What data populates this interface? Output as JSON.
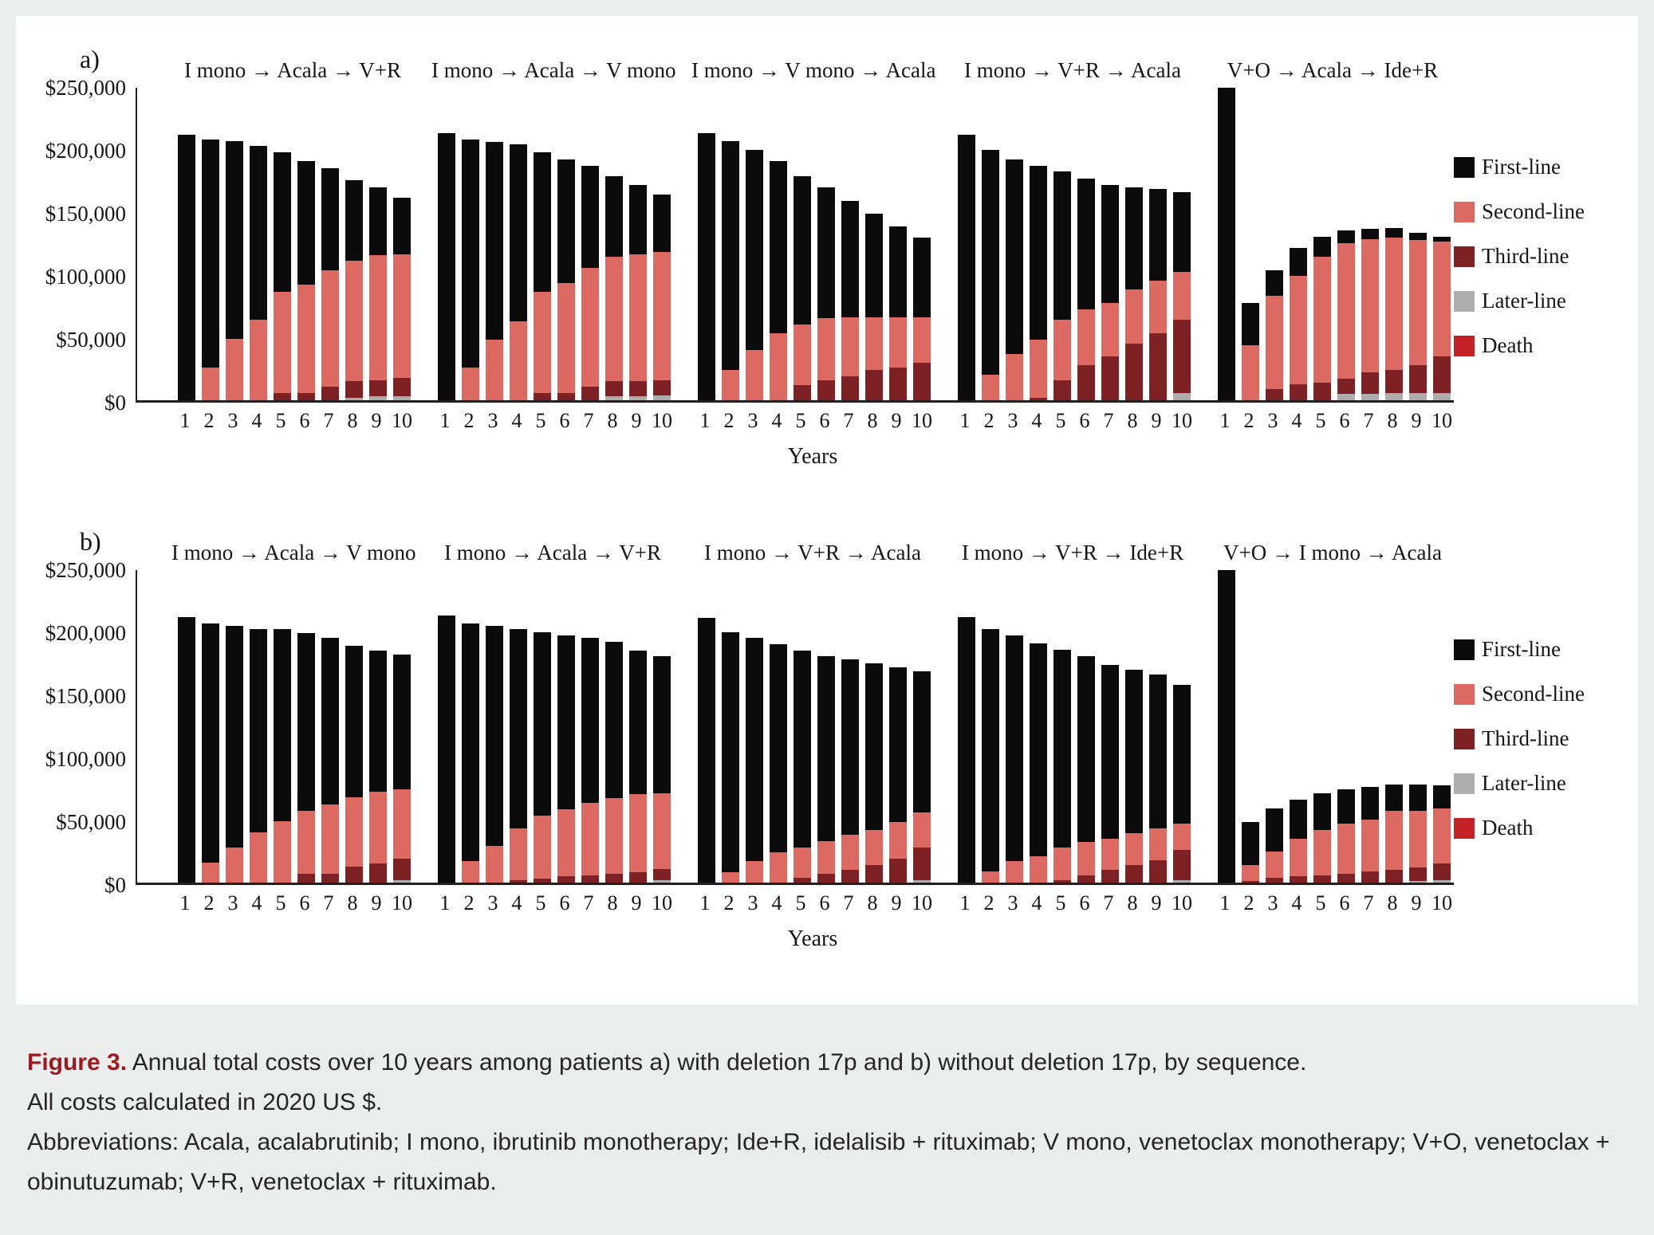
{
  "caption": {
    "label": "Figure 3.",
    "line1": "Annual total costs over 10 years among patients a) with deletion 17p and b) without deletion 17p, by sequence.",
    "line2": "All costs calculated in 2020 US $.",
    "line3": "Abbreviations: Acala, acalabrutinib; I mono, ibrutinib monotherapy; Ide+R, idelalisib + rituximab; V mono, venetoclax monotherapy; V+O, venetoclax + obinutuzumab; V+R, venetoclax + rituximab."
  },
  "colors": {
    "first": "#0B0B0B",
    "second": "#DD6963",
    "third": "#7E2125",
    "later": "#ADADAD",
    "death": "#C42127"
  },
  "legend": {
    "items": [
      {
        "key": "first",
        "label": "First-line",
        "color": "#0B0B0B"
      },
      {
        "key": "second",
        "label": "Second-line",
        "color": "#DD6963"
      },
      {
        "key": "third",
        "label": "Third-line",
        "color": "#7E2125"
      },
      {
        "key": "later",
        "label": "Later-line",
        "color": "#ADADAD"
      },
      {
        "key": "death",
        "label": "Death",
        "color": "#C42127"
      }
    ]
  },
  "axis": {
    "xlabel": "Years",
    "x_ticks": [
      "1",
      "2",
      "3",
      "4",
      "5",
      "6",
      "7",
      "8",
      "9",
      "10"
    ],
    "y_ticks": [
      "$250,000",
      "$200,000",
      "$150,000",
      "$100,000",
      "$50,000",
      "$0"
    ],
    "ylim_usd": [
      0,
      250000
    ]
  },
  "chart_data": [
    {
      "type": "bar",
      "stacked": true,
      "panel": "a",
      "panel_label": "a)",
      "population": "patients with deletion 17p",
      "units": "thousands of 2020 US $",
      "stack_order_bottom_to_top": [
        "later",
        "third",
        "second",
        "first"
      ],
      "x": [
        1,
        2,
        3,
        4,
        5,
        6,
        7,
        8,
        9,
        10
      ],
      "groups": [
        {
          "label": "I mono → Acala → V+R",
          "series": {
            "first": [
              211,
              181,
              157,
              138,
              111,
              98,
              81,
              64,
              54,
              45
            ],
            "second": [
              0,
              26,
              49,
              64,
              80,
              86,
              92,
              96,
              99,
              98
            ],
            "third": [
              0,
              0,
              0,
              0,
              6,
              6,
              11,
              13,
              13,
              15
            ],
            "later": [
              0,
              0,
              0,
              0,
              0,
              0,
              0,
              2,
              3,
              3
            ]
          }
        },
        {
          "label": "I mono → Acala → V mono",
          "series": {
            "first": [
              212,
              181,
              157,
              140,
              111,
              98,
              81,
              64,
              55,
              45
            ],
            "second": [
              0,
              26,
              48,
              63,
              80,
              87,
              94,
              99,
              101,
              102
            ],
            "third": [
              0,
              0,
              0,
              0,
              6,
              6,
              11,
              12,
              12,
              12
            ],
            "later": [
              0,
              0,
              0,
              0,
              0,
              0,
              0,
              3,
              3,
              4
            ]
          }
        },
        {
          "label": "I mono → V mono → Acala",
          "series": {
            "first": [
              212,
              182,
              159,
              137,
              118,
              104,
              92,
              82,
              72,
              63
            ],
            "second": [
              0,
              24,
              40,
              53,
              48,
              49,
              47,
              42,
              40,
              36
            ],
            "third": [
              0,
              0,
              0,
              0,
              12,
              16,
              19,
              24,
              26,
              30
            ],
            "later": [
              0,
              0,
              0,
              0,
              0,
              0,
              0,
              0,
              0,
              0
            ]
          }
        },
        {
          "label": "I mono → V+R → Acala",
          "series": {
            "first": [
              211,
              179,
              154,
              138,
              118,
              104,
              94,
              81,
              73,
              63
            ],
            "second": [
              0,
              20,
              37,
              46,
              48,
              44,
              42,
              43,
              42,
              38
            ],
            "third": [
              0,
              0,
              0,
              2,
              16,
              28,
              35,
              45,
              53,
              58
            ],
            "later": [
              0,
              0,
              0,
              0,
              0,
              0,
              0,
              0,
              0,
              6
            ]
          }
        },
        {
          "label": "V+O → Acala → Ide+R",
          "series": {
            "first": [
              248,
              33,
              20,
              22,
              16,
              10,
              8,
              8,
              6,
              4
            ],
            "second": [
              0,
              44,
              74,
              86,
              100,
              108,
              106,
              105,
              99,
              91
            ],
            "third": [
              0,
              0,
              9,
              13,
              14,
              12,
              17,
              18,
              22,
              29
            ],
            "later": [
              0,
              0,
              0,
              0,
              0,
              5,
              5,
              6,
              6,
              6
            ]
          }
        }
      ]
    },
    {
      "type": "bar",
      "stacked": true,
      "panel": "b",
      "panel_label": "b)",
      "population": "patients without deletion 17p",
      "units": "thousands of 2020 US $",
      "stack_order_bottom_to_top": [
        "later",
        "third",
        "second",
        "first"
      ],
      "x": [
        1,
        2,
        3,
        4,
        5,
        6,
        7,
        8,
        9,
        10
      ],
      "groups": [
        {
          "label": "I mono → Acala → V mono",
          "series": {
            "first": [
              211,
              190,
              176,
              161,
              152,
              141,
              132,
              120,
              112,
              107
            ],
            "second": [
              0,
              16,
              28,
              40,
              49,
              50,
              55,
              55,
              57,
              55
            ],
            "third": [
              0,
              0,
              0,
              0,
              0,
              7,
              7,
              13,
              15,
              17
            ],
            "later": [
              0,
              0,
              0,
              0,
              0,
              0,
              0,
              0,
              0,
              2
            ]
          }
        },
        {
          "label": "I mono → Acala → V+R",
          "series": {
            "first": [
              212,
              189,
              175,
              158,
              146,
              138,
              131,
              124,
              114,
              109
            ],
            "second": [
              0,
              17,
              29,
              41,
              50,
              53,
              57,
              60,
              62,
              60
            ],
            "third": [
              0,
              0,
              0,
              2,
              3,
              5,
              6,
              7,
              8,
              9
            ],
            "later": [
              0,
              0,
              0,
              0,
              0,
              0,
              0,
              0,
              0,
              2
            ]
          }
        },
        {
          "label": "I mono → V+R → Acala",
          "series": {
            "first": [
              210,
              191,
              177,
              165,
              156,
              147,
              139,
              132,
              123,
              112
            ],
            "second": [
              0,
              8,
              17,
              24,
              24,
              26,
              28,
              28,
              29,
              28
            ],
            "third": [
              0,
              0,
              0,
              0,
              4,
              7,
              10,
              14,
              19,
              26
            ],
            "later": [
              0,
              0,
              0,
              0,
              0,
              0,
              0,
              0,
              0,
              2
            ]
          }
        },
        {
          "label": "I mono → V+R → Ide+R",
          "series": {
            "first": [
              211,
              192,
              179,
              169,
              157,
              148,
              138,
              130,
              122,
              110
            ],
            "second": [
              0,
              9,
              17,
              21,
              26,
              26,
              25,
              25,
              25,
              21
            ],
            "third": [
              0,
              0,
              0,
              0,
              2,
              6,
              10,
              14,
              18,
              24
            ],
            "later": [
              0,
              0,
              0,
              0,
              0,
              0,
              0,
              0,
              0,
              2
            ]
          }
        },
        {
          "label": "V+O → I mono → Acala",
          "series": {
            "first": [
              248,
              34,
              34,
              31,
              29,
              27,
              26,
              21,
              21,
              18
            ],
            "second": [
              0,
              13,
              21,
              30,
              36,
              40,
              41,
              47,
              45,
              44
            ],
            "third": [
              0,
              1,
              4,
              5,
              6,
              7,
              9,
              10,
              11,
              13
            ],
            "later": [
              0,
              0,
              0,
              0,
              0,
              0,
              0,
              0,
              1,
              2
            ]
          }
        }
      ]
    }
  ]
}
